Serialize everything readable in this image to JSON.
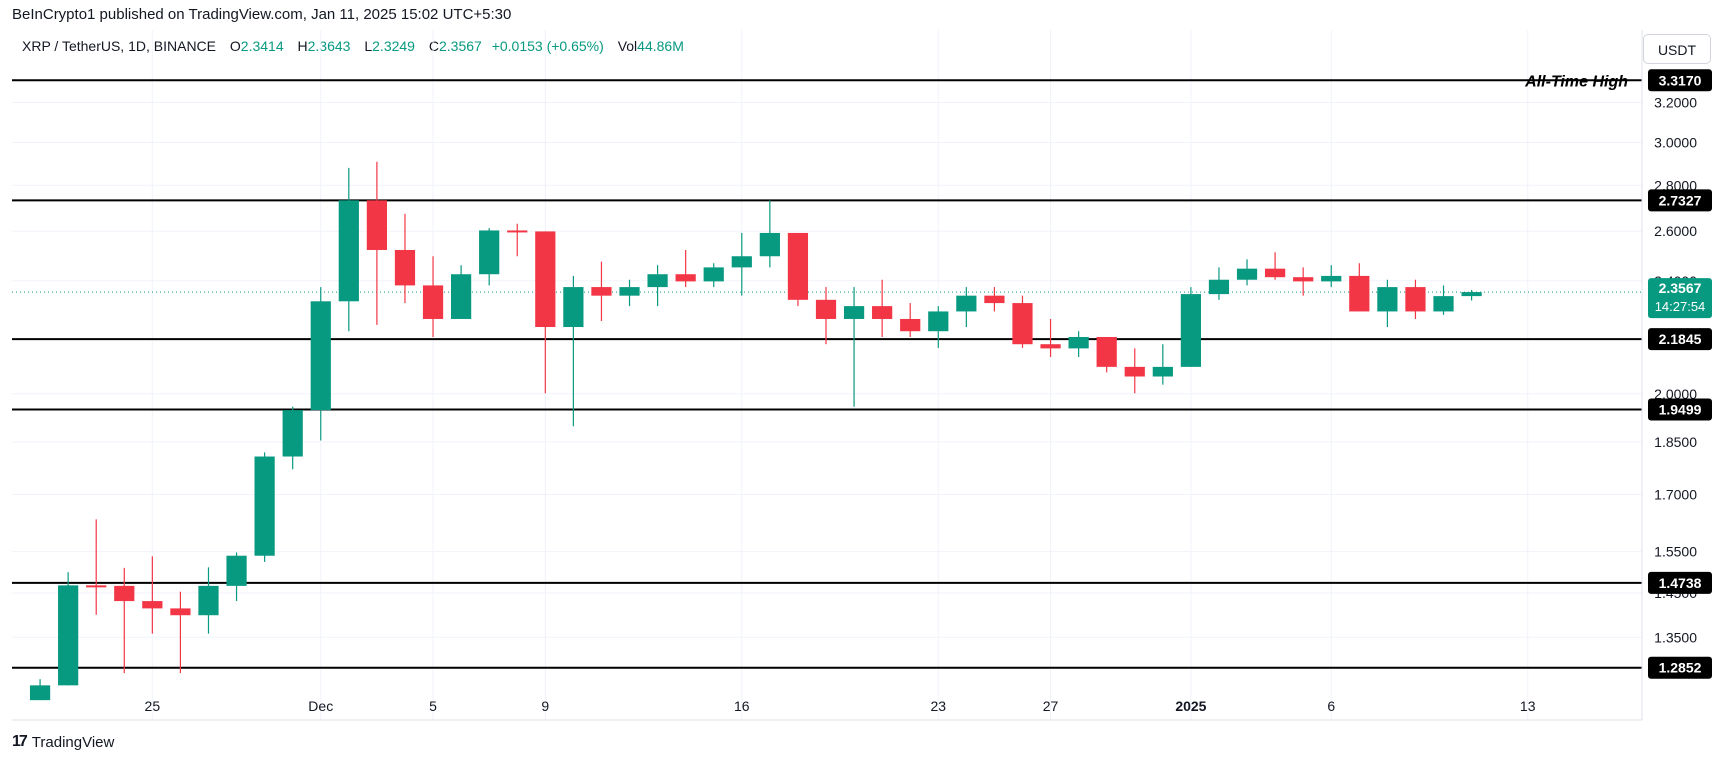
{
  "header": {
    "published": "BeInCrypto1 published on TradingView.com, Jan 11, 2025 15:02 UTC+5:30",
    "symbol": "XRP / TetherUS, 1D, BINANCE",
    "o_label": "O",
    "o_value": "2.3414",
    "h_label": "H",
    "h_value": "2.3643",
    "l_label": "L",
    "l_value": "2.3249",
    "c_label": "C",
    "c_value": "2.3567",
    "change": "+0.0153 (+0.65%)",
    "vol_label": "Vol",
    "vol_value": "44.86M",
    "currency": "USDT"
  },
  "footer": {
    "logo_text": "TradingView",
    "logo_icon": "tradingview-logo-icon"
  },
  "colors": {
    "up": "#089981",
    "down": "#f23645",
    "line": "#000000",
    "grid": "#f0f3fa",
    "axis_text": "#131722"
  },
  "chart_data": {
    "type": "candlestick",
    "price_axis": {
      "ticks": [
        1.35,
        1.45,
        1.55,
        1.7,
        1.85,
        2.0,
        2.4,
        2.6,
        2.8,
        3.0,
        3.2
      ],
      "scale": "log",
      "range": [
        1.22,
        3.4
      ]
    },
    "time_axis": {
      "labels": [
        {
          "text": "25",
          "date": "2024-11-25"
        },
        {
          "text": "Dec",
          "date": "2024-12-01"
        },
        {
          "text": "5",
          "date": "2024-12-05"
        },
        {
          "text": "9",
          "date": "2024-12-09"
        },
        {
          "text": "16",
          "date": "2024-12-16"
        },
        {
          "text": "23",
          "date": "2024-12-23"
        },
        {
          "text": "27",
          "date": "2024-12-27"
        },
        {
          "text": "2025",
          "date": "2025-01-01"
        },
        {
          "text": "6",
          "date": "2025-01-06"
        },
        {
          "text": "13",
          "date": "2025-01-13"
        }
      ],
      "range": [
        "2024-11-20",
        "2025-01-17"
      ]
    },
    "levels": [
      {
        "price": 3.317,
        "label": "3.3170",
        "annotation": "All-Time High"
      },
      {
        "price": 2.7327,
        "label": "2.7327",
        "annotation": ""
      },
      {
        "price": 2.1845,
        "label": "2.1845",
        "annotation": ""
      },
      {
        "price": 1.9499,
        "label": "1.9499",
        "annotation": ""
      },
      {
        "price": 1.4738,
        "label": "1.4738",
        "annotation": ""
      },
      {
        "price": 1.2852,
        "label": "1.2852",
        "annotation": ""
      }
    ],
    "current": {
      "price": 2.3567,
      "label": "2.3567",
      "countdown": "14:27:54"
    },
    "candles": [
      {
        "date": "2024-11-21",
        "o": 1.2197,
        "h": 1.2617,
        "l": 1.2197,
        "c": 1.2492
      },
      {
        "date": "2024-11-22",
        "o": 1.2492,
        "h": 1.4995,
        "l": 1.2492,
        "c": 1.468
      },
      {
        "date": "2024-11-23",
        "o": 1.468,
        "h": 1.633,
        "l": 1.4,
        "c": 1.4668
      },
      {
        "date": "2024-11-24",
        "o": 1.4668,
        "h": 1.51,
        "l": 1.2741,
        "c": 1.4312
      },
      {
        "date": "2024-11-25",
        "o": 1.4312,
        "h": 1.5385,
        "l": 1.3579,
        "c": 1.4144
      },
      {
        "date": "2024-11-26",
        "o": 1.4144,
        "h": 1.453,
        "l": 1.2741,
        "c": 1.3989
      },
      {
        "date": "2024-11-27",
        "o": 1.3989,
        "h": 1.5113,
        "l": 1.3579,
        "c": 1.4668
      },
      {
        "date": "2024-11-28",
        "o": 1.4668,
        "h": 1.548,
        "l": 1.4312,
        "c": 1.5399
      },
      {
        "date": "2024-11-29",
        "o": 1.5399,
        "h": 1.8194,
        "l": 1.5246,
        "c": 1.8073
      },
      {
        "date": "2024-11-30",
        "o": 1.8073,
        "h": 1.9587,
        "l": 1.7706,
        "c": 1.9479
      },
      {
        "date": "2024-12-01",
        "o": 1.9479,
        "h": 2.3757,
        "l": 1.8547,
        "c": 2.3219
      },
      {
        "date": "2024-12-02",
        "o": 2.3219,
        "h": 2.8796,
        "l": 2.2124,
        "c": 2.7327
      },
      {
        "date": "2024-12-03",
        "o": 2.7327,
        "h": 2.9083,
        "l": 2.2354,
        "c": 2.5224
      },
      {
        "date": "2024-12-04",
        "o": 2.5224,
        "h": 2.6739,
        "l": 2.3152,
        "c": 2.3822
      },
      {
        "date": "2024-12-05",
        "o": 2.3822,
        "h": 2.497,
        "l": 2.1919,
        "c": 2.2566
      },
      {
        "date": "2024-12-06",
        "o": 2.2566,
        "h": 2.4612,
        "l": 2.2566,
        "c": 2.4256
      },
      {
        "date": "2024-12-07",
        "o": 2.4256,
        "h": 2.6128,
        "l": 2.3822,
        "c": 2.6032
      },
      {
        "date": "2024-12-08",
        "o": 2.6032,
        "h": 2.6315,
        "l": 2.497,
        "c": 2.5991
      },
      {
        "date": "2024-12-09",
        "o": 2.5991,
        "h": 2.5991,
        "l": 2.0017,
        "c": 2.2275
      },
      {
        "date": "2024-12-10",
        "o": 2.2275,
        "h": 2.419,
        "l": 1.8979,
        "c": 2.3758
      },
      {
        "date": "2024-12-11",
        "o": 2.3758,
        "h": 2.4755,
        "l": 2.2493,
        "c": 2.3431
      },
      {
        "date": "2024-12-12",
        "o": 2.3431,
        "h": 2.4041,
        "l": 2.3039,
        "c": 2.3757
      },
      {
        "date": "2024-12-13",
        "o": 2.3757,
        "h": 2.4612,
        "l": 2.3039,
        "c": 2.4256
      },
      {
        "date": "2024-12-14",
        "o": 2.4256,
        "h": 2.5224,
        "l": 2.3757,
        "c": 2.3977
      },
      {
        "date": "2024-12-15",
        "o": 2.3977,
        "h": 2.469,
        "l": 2.3757,
        "c": 2.4525
      },
      {
        "date": "2024-12-16",
        "o": 2.4525,
        "h": 2.5927,
        "l": 2.3431,
        "c": 2.497
      },
      {
        "date": "2024-12-17",
        "o": 2.497,
        "h": 2.7327,
        "l": 2.4525,
        "c": 2.5927
      },
      {
        "date": "2024-12-18",
        "o": 2.5927,
        "h": 2.5927,
        "l": 2.3039,
        "c": 2.3274
      },
      {
        "date": "2024-12-19",
        "o": 2.3274,
        "h": 2.3757,
        "l": 2.1665,
        "c": 2.2566
      },
      {
        "date": "2024-12-20",
        "o": 2.2566,
        "h": 2.3757,
        "l": 1.9587,
        "c": 2.3039
      },
      {
        "date": "2024-12-21",
        "o": 2.3039,
        "h": 2.4041,
        "l": 2.1919,
        "c": 2.2566
      },
      {
        "date": "2024-12-22",
        "o": 2.2566,
        "h": 2.3152,
        "l": 2.1919,
        "c": 2.2124
      },
      {
        "date": "2024-12-23",
        "o": 2.2124,
        "h": 2.3039,
        "l": 2.1536,
        "c": 2.2842
      },
      {
        "date": "2024-12-24",
        "o": 2.2842,
        "h": 2.3757,
        "l": 2.2275,
        "c": 2.3431
      },
      {
        "date": "2024-12-25",
        "o": 2.3431,
        "h": 2.3757,
        "l": 2.2842,
        "c": 2.3152
      },
      {
        "date": "2024-12-26",
        "o": 2.3152,
        "h": 2.3431,
        "l": 2.1536,
        "c": 2.1665
      },
      {
        "date": "2024-12-27",
        "o": 2.1665,
        "h": 2.2566,
        "l": 2.1224,
        "c": 2.1519
      },
      {
        "date": "2024-12-28",
        "o": 2.1519,
        "h": 2.2124,
        "l": 2.1224,
        "c": 2.1919
      },
      {
        "date": "2024-12-29",
        "o": 2.1919,
        "h": 2.1919,
        "l": 2.0701,
        "c": 2.0887
      },
      {
        "date": "2024-12-30",
        "o": 2.0887,
        "h": 2.1519,
        "l": 2.0017,
        "c": 2.0565
      },
      {
        "date": "2024-12-31",
        "o": 2.0565,
        "h": 2.1665,
        "l": 2.0296,
        "c": 2.0887
      },
      {
        "date": "2025-01-01",
        "o": 2.0887,
        "h": 2.3757,
        "l": 2.0887,
        "c": 2.349
      },
      {
        "date": "2025-01-02",
        "o": 2.349,
        "h": 2.4525,
        "l": 2.3274,
        "c": 2.4041
      },
      {
        "date": "2025-01-03",
        "o": 2.4041,
        "h": 2.4848,
        "l": 2.3822,
        "c": 2.4475
      },
      {
        "date": "2025-01-04",
        "o": 2.4475,
        "h": 2.5129,
        "l": 2.4041,
        "c": 2.414
      },
      {
        "date": "2025-01-05",
        "o": 2.414,
        "h": 2.4525,
        "l": 2.3431,
        "c": 2.3977
      },
      {
        "date": "2025-01-06",
        "o": 2.3977,
        "h": 2.4612,
        "l": 2.3757,
        "c": 2.419
      },
      {
        "date": "2025-01-07",
        "o": 2.419,
        "h": 2.469,
        "l": 2.2842,
        "c": 2.2842
      },
      {
        "date": "2025-01-08",
        "o": 2.2842,
        "h": 2.4041,
        "l": 2.2275,
        "c": 2.3757
      },
      {
        "date": "2025-01-09",
        "o": 2.3757,
        "h": 2.4041,
        "l": 2.2566,
        "c": 2.2842
      },
      {
        "date": "2025-01-10",
        "o": 2.2842,
        "h": 2.3822,
        "l": 2.2717,
        "c": 2.3414
      },
      {
        "date": "2025-01-11",
        "o": 2.3414,
        "h": 2.3643,
        "l": 2.3249,
        "c": 2.3567
      }
    ]
  }
}
